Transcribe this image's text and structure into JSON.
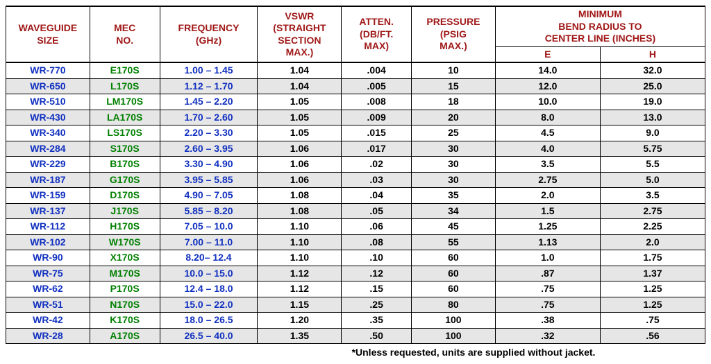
{
  "table": {
    "type": "table",
    "background_color": "#ffffff",
    "alt_row_color": "#e6e6e6",
    "border_color": "#000000",
    "header_text_color": "#a01818",
    "col_colors": {
      "waveguide": "#1030c0",
      "mec": "#008000",
      "frequency": "#1030c0",
      "numeric": "#000000"
    },
    "font_size_pt": 11,
    "col_widths_pct": [
      12,
      10,
      14,
      12,
      10,
      12,
      15,
      15
    ],
    "headers": {
      "waveguide": "WAVEGUIDE\nSIZE",
      "mec": "MEC\nNO.",
      "frequency": "FREQUENCY\n(GHz)",
      "vswr": "VSWR\n(STRAIGHT\nSECTION\nMAX.)",
      "atten": "ATTEN.\n(DB/FT.\nMAX)",
      "pressure": "PRESSURE\n(PSIG\nMAX.)",
      "bend_group": "MINIMUM\nBEND RADIUS TO\nCENTER LINE (INCHES)",
      "bend_e": "E",
      "bend_h": "H"
    },
    "rows": [
      {
        "wg": "WR-770",
        "mec": "E170S",
        "freq": "1.00 – 1.45",
        "vswr": "1.04",
        "atten": ".004",
        "psig": "10",
        "e": "14.0",
        "h": "32.0"
      },
      {
        "wg": "WR-650",
        "mec": "L170S",
        "freq": "1.12 – 1.70",
        "vswr": "1.04",
        "atten": ".005",
        "psig": "15",
        "e": "12.0",
        "h": "25.0"
      },
      {
        "wg": "WR-510",
        "mec": "LM170S",
        "freq": "1.45 – 2.20",
        "vswr": "1.05",
        "atten": ".008",
        "psig": "18",
        "e": "10.0",
        "h": "19.0"
      },
      {
        "wg": "WR-430",
        "mec": "LA170S",
        "freq": "1.70 – 2.60",
        "vswr": "1.05",
        "atten": ".009",
        "psig": "20",
        "e": "8.0",
        "h": "13.0"
      },
      {
        "wg": "WR-340",
        "mec": "LS170S",
        "freq": "2.20 – 3.30",
        "vswr": "1.05",
        "atten": ".015",
        "psig": "25",
        "e": "4.5",
        "h": "9.0"
      },
      {
        "wg": "WR-284",
        "mec": "S170S",
        "freq": "2.60 – 3.95",
        "vswr": "1.06",
        "atten": ".017",
        "psig": "30",
        "e": "4.0",
        "h": "5.75"
      },
      {
        "wg": "WR-229",
        "mec": "B170S",
        "freq": "3.30 – 4.90",
        "vswr": "1.06",
        "atten": ".02",
        "psig": "30",
        "e": "3.5",
        "h": "5.5"
      },
      {
        "wg": "WR-187",
        "mec": "G170S",
        "freq": "3.95 – 5.85",
        "vswr": "1.06",
        "atten": ".03",
        "psig": "30",
        "e": "2.75",
        "h": "5.0"
      },
      {
        "wg": "WR-159",
        "mec": "D170S",
        "freq": "4.90 – 7.05",
        "vswr": "1.08",
        "atten": ".04",
        "psig": "35",
        "e": "2.0",
        "h": "3.5"
      },
      {
        "wg": "WR-137",
        "mec": "J170S",
        "freq": "5.85 – 8.20",
        "vswr": "1.08",
        "atten": ".05",
        "psig": "34",
        "e": "1.5",
        "h": "2.75"
      },
      {
        "wg": "WR-112",
        "mec": "H170S",
        "freq": "7.05 – 10.0",
        "vswr": "1.10",
        "atten": ".06",
        "psig": "45",
        "e": "1.25",
        "h": "2.25"
      },
      {
        "wg": "WR-102",
        "mec": "W170S",
        "freq": "7.00 – 11.0",
        "vswr": "1.10",
        "atten": ".08",
        "psig": "55",
        "e": "1.13",
        "h": "2.0"
      },
      {
        "wg": "WR-90",
        "mec": "X170S",
        "freq": "8.20– 12.4",
        "vswr": "1.10",
        "atten": ".10",
        "psig": "60",
        "e": "1.0",
        "h": "1.75"
      },
      {
        "wg": "WR-75",
        "mec": "M170S",
        "freq": "10.0 – 15.0",
        "vswr": "1.12",
        "atten": ".12",
        "psig": "60",
        "e": ".87",
        "h": "1.37"
      },
      {
        "wg": "WR-62",
        "mec": "P170S",
        "freq": "12.4 – 18.0",
        "vswr": "1.12",
        "atten": ".15",
        "psig": "60",
        "e": ".75",
        "h": "1.25"
      },
      {
        "wg": "WR-51",
        "mec": "N170S",
        "freq": "15.0 – 22.0",
        "vswr": "1.15",
        "atten": ".25",
        "psig": "80",
        "e": ".75",
        "h": "1.25"
      },
      {
        "wg": "WR-42",
        "mec": "K170S",
        "freq": "18.0 – 26.5",
        "vswr": "1.20",
        "atten": ".35",
        "psig": "100",
        "e": ".38",
        "h": ".75"
      },
      {
        "wg": "WR-28",
        "mec": "A170S",
        "freq": "26.5 – 40.0",
        "vswr": "1.35",
        "atten": ".50",
        "psig": "100",
        "e": ".32",
        "h": ".56"
      }
    ]
  },
  "footnote": "*Unless requested, units are supplied without jacket."
}
